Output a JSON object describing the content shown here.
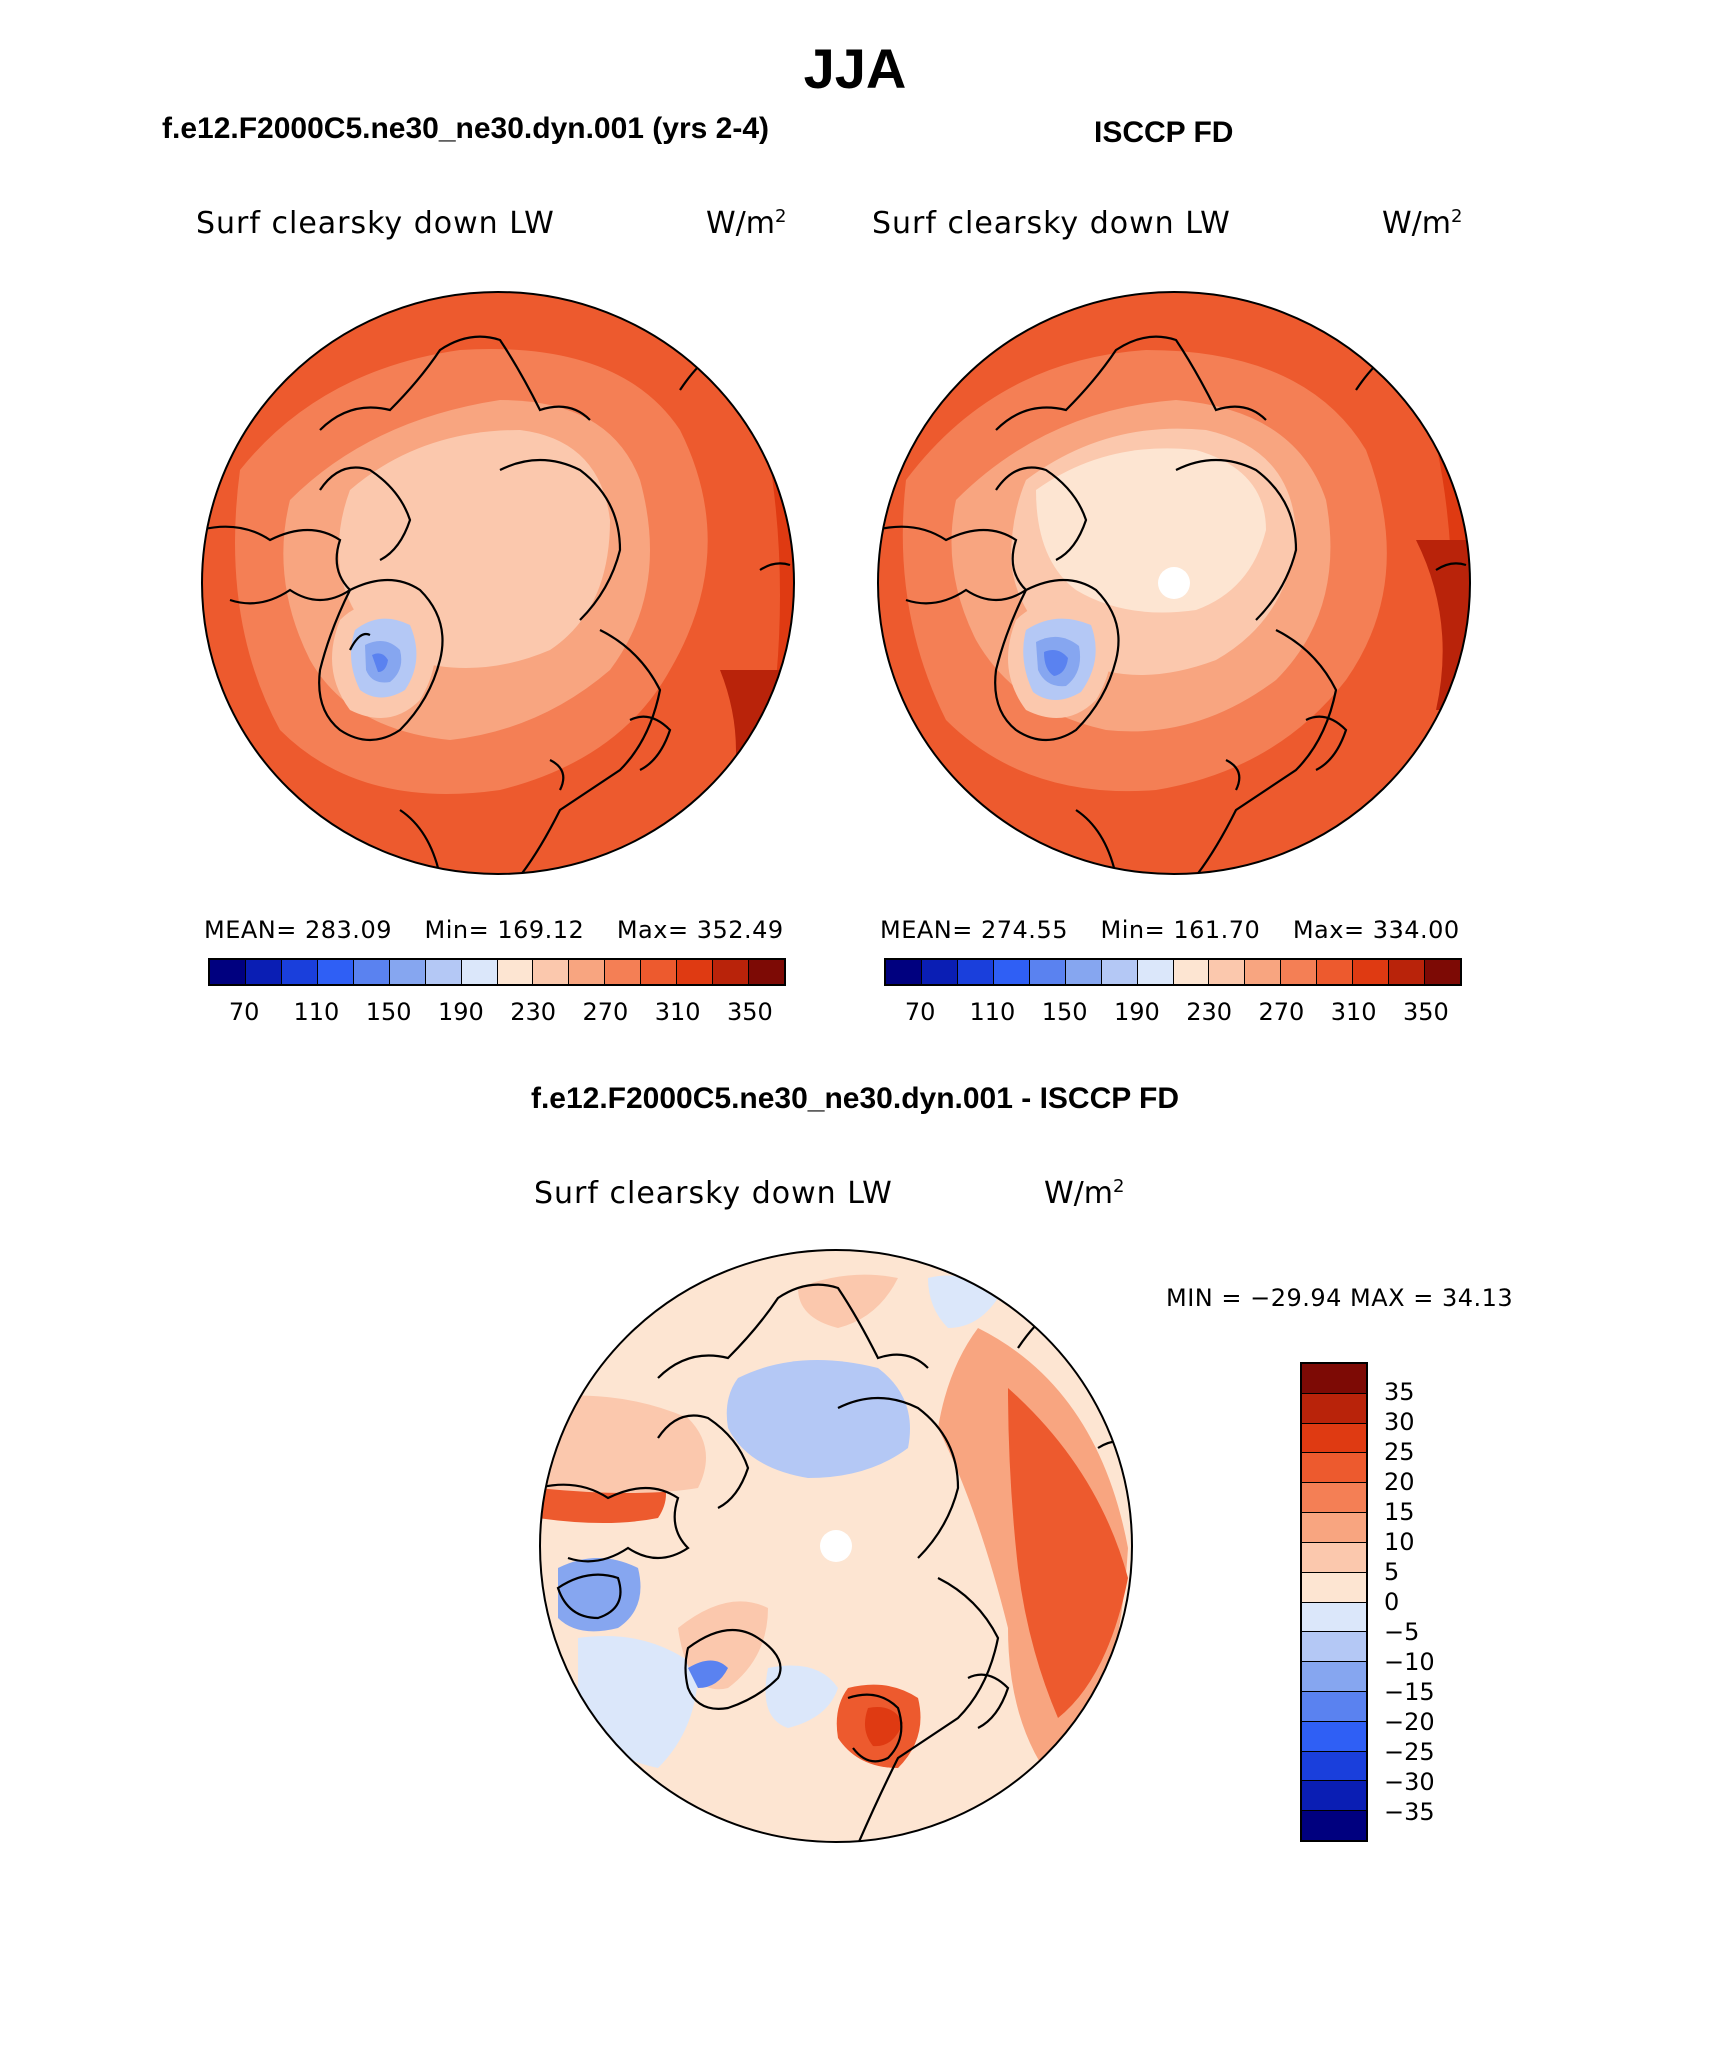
{
  "title": "JJA",
  "panels": [
    {
      "id": "model",
      "title": "f.e12.F2000C5.ne30_ne30.dyn.001 (yrs 2-4)",
      "variable": "Surf clearsky down LW",
      "units_base": "W/m",
      "units_exp": "2",
      "mean_label": "MEAN=",
      "mean": "283.09",
      "min_label": "Min=",
      "min": "169.12",
      "max_label": "Max=",
      "max": "352.49"
    },
    {
      "id": "obs",
      "title": "ISCCP FD",
      "variable": "Surf clearsky down LW",
      "units_base": "W/m",
      "units_exp": "2",
      "mean_label": "MEAN=",
      "mean": "274.55",
      "min_label": "Min=",
      "min": "161.70",
      "max_label": "Max=",
      "max": "334.00"
    }
  ],
  "diff": {
    "title": "f.e12.F2000C5.ne30_ne30.dyn.001 - ISCCP FD",
    "variable": "Surf clearsky down LW",
    "units_base": "W/m",
    "units_exp": "2",
    "minmax": "MIN = −29.94 MAX =  34.13"
  },
  "abs_colorbar": {
    "colors": [
      "#00007f",
      "#0a1eb4",
      "#1a3fdc",
      "#2f5ff5",
      "#5a82f0",
      "#86a6f0",
      "#b4c8f5",
      "#dbe7fa",
      "#fde5d2",
      "#fbc8ad",
      "#f8a580",
      "#f47f55",
      "#ed5a2e",
      "#df3a12",
      "#b9230a",
      "#7d0a05"
    ],
    "ticks": [
      "70",
      "110",
      "150",
      "190",
      "230",
      "270",
      "310",
      "350"
    ]
  },
  "diff_colorbar": {
    "colors": [
      "#7d0a05",
      "#b9230a",
      "#df3a12",
      "#ed5a2e",
      "#f47f55",
      "#f8a580",
      "#fbc8ad",
      "#fde5d2",
      "#dbe7fa",
      "#b4c8f5",
      "#86a6f0",
      "#5a82f0",
      "#2f5ff5",
      "#1a3fdc",
      "#0a1eb4",
      "#00007f"
    ],
    "ticks": [
      "35",
      "30",
      "25",
      "20",
      "15",
      "10",
      "5",
      "0",
      "−5",
      "−10",
      "−15",
      "−20",
      "−25",
      "−30",
      "−35"
    ]
  },
  "map_colors": {
    "ocean_warm": "#ed5a2e",
    "mid": "#f47f55",
    "light": "#f8a580",
    "pale": "#fbc8ad",
    "cold1": "#b4c8f5",
    "cold2": "#86a6f0",
    "cold3": "#5a82f0",
    "deep": "#df3a12",
    "darkest": "#b9230a",
    "diff_bg": "#fde5d2",
    "diff_pos1": "#fbc8ad",
    "diff_pos2": "#f8a580",
    "diff_pos3": "#ed5a2e",
    "diff_neg1": "#dbe7fa",
    "diff_neg2": "#b4c8f5",
    "diff_neg3": "#86a6f0"
  }
}
